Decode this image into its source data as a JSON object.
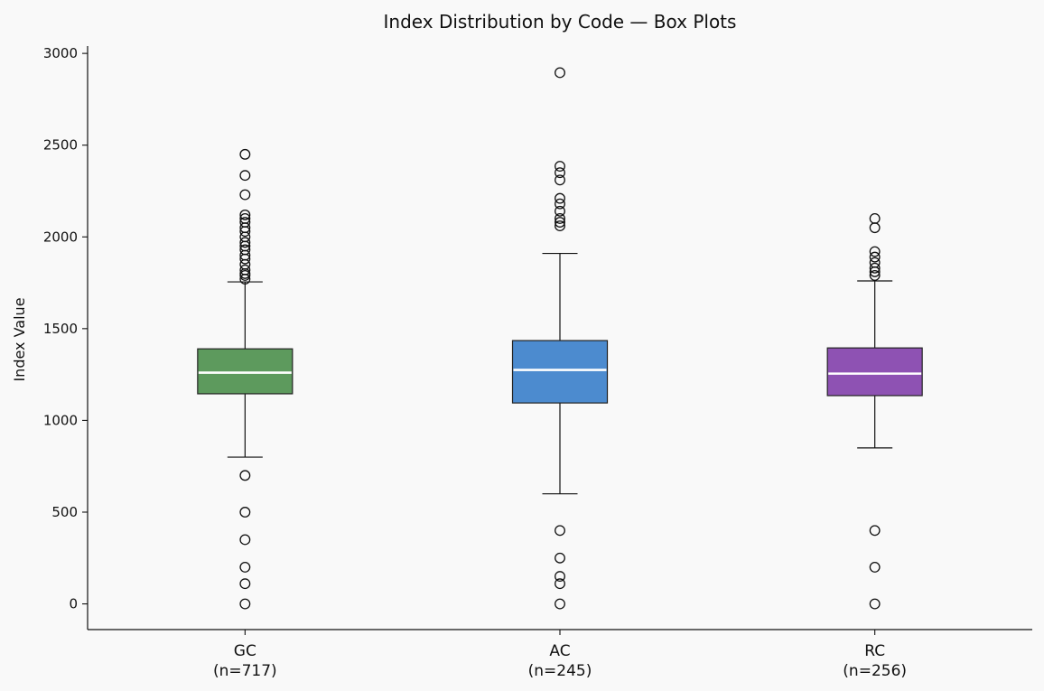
{
  "chart_data": {
    "type": "box",
    "title": "Index Distribution by Code — Box Plots",
    "xlabel": "",
    "ylabel": "Index Value",
    "ylim": [
      -140,
      3040
    ],
    "yticks": [
      0,
      500,
      1000,
      1500,
      2000,
      2500,
      3000
    ],
    "grid": false,
    "categories": [
      "GC",
      "AC",
      "RC"
    ],
    "counts": [
      "(n=717)",
      "(n=245)",
      "(n=256)"
    ],
    "colors": [
      "#5d9a5d",
      "#4c8bcf",
      "#8e52b3"
    ],
    "series": [
      {
        "category": "GC",
        "whisker_low": 800,
        "q1": 1145,
        "median": 1260,
        "q3": 1390,
        "whisker_high": 1755,
        "outliers": [
          0,
          110,
          200,
          350,
          500,
          700,
          1770,
          1790,
          1800,
          1820,
          1850,
          1880,
          1900,
          1930,
          1950,
          1970,
          2000,
          2030,
          2050,
          2080,
          2100,
          2120,
          2230,
          2335,
          2450
        ]
      },
      {
        "category": "AC",
        "whisker_low": 600,
        "q1": 1095,
        "median": 1275,
        "q3": 1435,
        "whisker_high": 1910,
        "outliers": [
          0,
          110,
          150,
          250,
          400,
          2060,
          2080,
          2100,
          2140,
          2180,
          2210,
          2310,
          2350,
          2385,
          2895
        ]
      },
      {
        "category": "RC",
        "whisker_low": 850,
        "q1": 1135,
        "median": 1255,
        "q3": 1395,
        "whisker_high": 1760,
        "outliers": [
          0,
          200,
          400,
          1790,
          1810,
          1830,
          1860,
          1890,
          1920,
          2050,
          2100
        ]
      }
    ]
  }
}
